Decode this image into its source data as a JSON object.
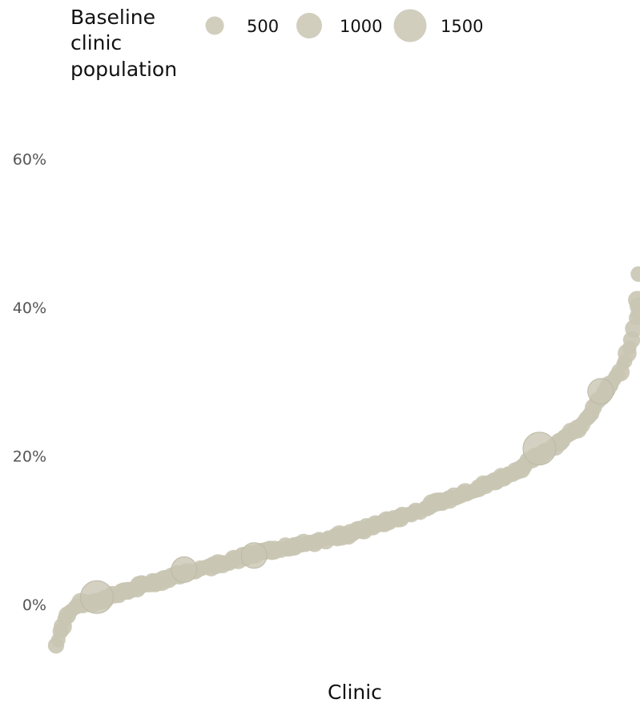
{
  "chart_data": {
    "type": "scatter",
    "title": "",
    "xlabel": "Clinic",
    "ylabel": "",
    "x_ticks_shown": false,
    "ylim": [
      -0.06,
      0.66
    ],
    "y_ticks": [
      0,
      0.2,
      0.4,
      0.6
    ],
    "y_tick_labels": [
      "0%",
      "20%",
      "40%",
      "60%"
    ],
    "grid": false,
    "legend": {
      "title_lines": [
        "Baseline",
        "clinic",
        "population"
      ],
      "placement": "top-left",
      "entries": [
        {
          "label": "500",
          "size": 500
        },
        {
          "label": "1000",
          "size": 1000
        },
        {
          "label": "1500",
          "size": 1500
        }
      ]
    },
    "marker_color": "#c9c5b3",
    "curve_anchors": [
      [
        0.0,
        -0.055
      ],
      [
        0.01,
        -0.03
      ],
      [
        0.02,
        -0.012
      ],
      [
        0.04,
        0.0
      ],
      [
        0.06,
        0.003
      ],
      [
        0.12,
        0.018
      ],
      [
        0.2,
        0.038
      ],
      [
        0.3,
        0.06
      ],
      [
        0.4,
        0.078
      ],
      [
        0.5,
        0.094
      ],
      [
        0.6,
        0.12
      ],
      [
        0.7,
        0.15
      ],
      [
        0.75,
        0.165
      ],
      [
        0.8,
        0.185
      ],
      [
        0.85,
        0.212
      ],
      [
        0.9,
        0.24
      ],
      [
        0.93,
        0.272
      ],
      [
        0.95,
        0.293
      ],
      [
        0.97,
        0.315
      ],
      [
        0.985,
        0.345
      ],
      [
        0.992,
        0.37
      ],
      [
        1.0,
        0.4
      ]
    ],
    "n_points_approx": 260,
    "large_points": [
      {
        "rank": 0.07,
        "value": 0.01,
        "population": 1500
      },
      {
        "rank": 0.22,
        "value": 0.047,
        "population": 1000
      },
      {
        "rank": 0.34,
        "value": 0.066,
        "population": 1000
      },
      {
        "rank": 0.83,
        "value": 0.21,
        "population": 1500
      },
      {
        "rank": 0.935,
        "value": 0.287,
        "population": 1000
      }
    ]
  }
}
